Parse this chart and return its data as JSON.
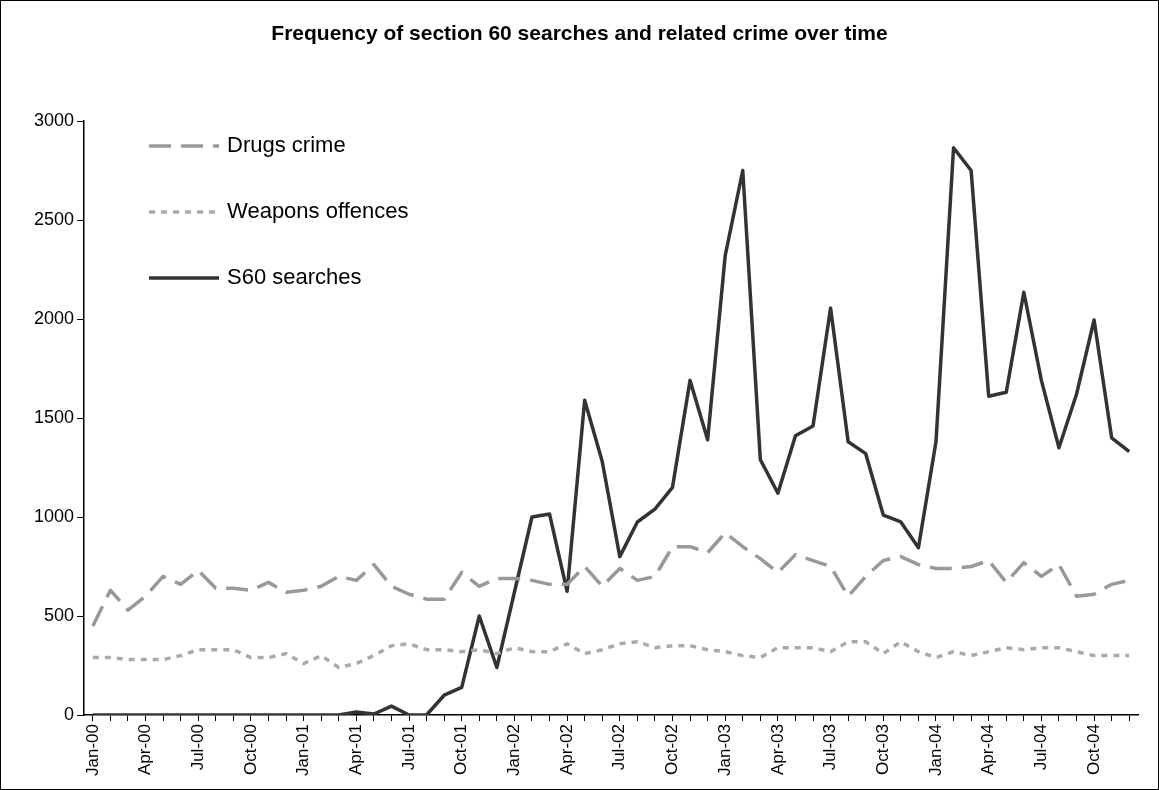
{
  "chart_data": {
    "type": "line",
    "title": "Frequency of section 60 searches and related crime over time",
    "categories": [
      "Jan-00",
      null,
      null,
      "Apr-00",
      null,
      null,
      "Jul-00",
      null,
      null,
      "Oct-00",
      null,
      null,
      "Jan-01",
      null,
      null,
      "Apr-01",
      null,
      null,
      "Jul-01",
      null,
      null,
      "Oct-01",
      null,
      null,
      "Jan-02",
      null,
      null,
      "Apr-02",
      null,
      null,
      "Jul-02",
      null,
      null,
      "Oct-02",
      null,
      null,
      "Jan-03",
      null,
      null,
      "Apr-03",
      null,
      null,
      "Jul-03",
      null,
      null,
      "Oct-03",
      null,
      null,
      "Jan-04",
      null,
      null,
      "Apr-04",
      null,
      null,
      "Jul-04",
      null,
      null,
      "Oct-04",
      null,
      null
    ],
    "series": [
      {
        "name": "Drugs crime",
        "color": "#999999",
        "line_style": "dashed",
        "values": [
          450,
          630,
          530,
          600,
          700,
          660,
          730,
          640,
          640,
          630,
          670,
          620,
          630,
          650,
          700,
          680,
          760,
          650,
          610,
          585,
          585,
          720,
          650,
          690,
          690,
          680,
          660,
          660,
          750,
          650,
          740,
          680,
          700,
          850,
          850,
          820,
          920,
          850,
          790,
          720,
          810,
          780,
          750,
          600,
          700,
          780,
          800,
          760,
          740,
          740,
          750,
          780,
          670,
          770,
          700,
          760,
          600,
          610,
          660,
          680
        ]
      },
      {
        "name": "Weapons offences",
        "color": "#aaaaaa",
        "line_style": "dotted",
        "values": [
          290,
          290,
          280,
          280,
          280,
          300,
          330,
          330,
          330,
          290,
          290,
          310,
          260,
          300,
          240,
          260,
          300,
          350,
          360,
          330,
          330,
          320,
          330,
          310,
          340,
          320,
          320,
          360,
          310,
          330,
          360,
          370,
          340,
          350,
          350,
          330,
          320,
          300,
          290,
          340,
          340,
          340,
          320,
          370,
          370,
          310,
          370,
          320,
          290,
          320,
          300,
          320,
          340,
          330,
          340,
          340,
          320,
          300,
          300,
          300
        ]
      },
      {
        "name": "S60 searches",
        "color": "#333333",
        "line_style": "solid",
        "values": [
          0,
          0,
          0,
          0,
          0,
          0,
          0,
          0,
          0,
          0,
          0,
          0,
          0,
          0,
          0,
          15,
          5,
          45,
          0,
          0,
          100,
          140,
          500,
          240,
          620,
          1000,
          1015,
          625,
          1590,
          1280,
          800,
          975,
          1040,
          1150,
          1690,
          1390,
          2320,
          2750,
          1290,
          1120,
          1410,
          1460,
          2055,
          1380,
          1320,
          1010,
          975,
          845,
          1380,
          2865,
          2750,
          1610,
          1630,
          2135,
          1690,
          1350,
          1620,
          1995,
          1400,
          1330
        ]
      }
    ],
    "ylim": [
      0,
      3000
    ],
    "yticks": [
      0,
      500,
      1000,
      1500,
      2000,
      2500,
      3000
    ],
    "grid": false,
    "legend": "top left",
    "marker": "none"
  }
}
